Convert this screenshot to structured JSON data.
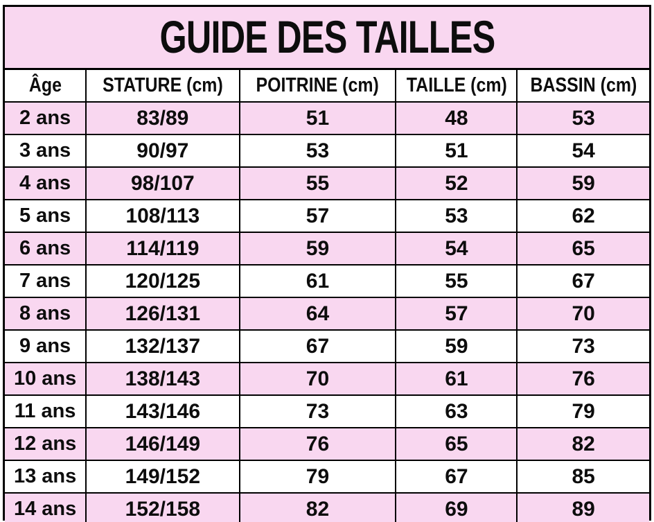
{
  "title": "GUIDE DES TAILLES",
  "table": {
    "columns": [
      "Âge",
      "STATURE (cm)",
      "POITRINE (cm)",
      "TAILLE (cm)",
      "BASSIN (cm)"
    ],
    "rows": [
      [
        "2 ans",
        "83/89",
        "51",
        "48",
        "53"
      ],
      [
        "3 ans",
        "90/97",
        "53",
        "51",
        "54"
      ],
      [
        "4 ans",
        "98/107",
        "55",
        "52",
        "59"
      ],
      [
        "5 ans",
        "108/113",
        "57",
        "53",
        "62"
      ],
      [
        "6 ans",
        "114/119",
        "59",
        "54",
        "65"
      ],
      [
        "7 ans",
        "120/125",
        "61",
        "55",
        "67"
      ],
      [
        "8 ans",
        "126/131",
        "64",
        "57",
        "70"
      ],
      [
        "9 ans",
        "132/137",
        "67",
        "59",
        "73"
      ],
      [
        "10 ans",
        "138/143",
        "70",
        "61",
        "76"
      ],
      [
        "11 ans",
        "143/146",
        "73",
        "63",
        "79"
      ],
      [
        "12 ans",
        "146/149",
        "76",
        "65",
        "82"
      ],
      [
        "13 ans",
        "149/152",
        "79",
        "67",
        "85"
      ],
      [
        "14 ans",
        "152/158",
        "82",
        "69",
        "89"
      ]
    ]
  },
  "chart_data": {
    "type": "table",
    "title": "GUIDE DES TAILLES",
    "columns": [
      "Âge",
      "STATURE (cm)",
      "POITRINE (cm)",
      "TAILLE (cm)",
      "BASSIN (cm)"
    ],
    "rows": [
      [
        "2 ans",
        "83/89",
        51,
        48,
        53
      ],
      [
        "3 ans",
        "90/97",
        53,
        51,
        54
      ],
      [
        "4 ans",
        "98/107",
        55,
        52,
        59
      ],
      [
        "5 ans",
        "108/113",
        57,
        53,
        62
      ],
      [
        "6 ans",
        "114/119",
        59,
        54,
        65
      ],
      [
        "7 ans",
        "120/125",
        61,
        55,
        67
      ],
      [
        "8 ans",
        "126/131",
        64,
        57,
        70
      ],
      [
        "9 ans",
        "132/137",
        67,
        59,
        73
      ],
      [
        "10 ans",
        "138/143",
        70,
        61,
        76
      ],
      [
        "11 ans",
        "143/146",
        73,
        63,
        79
      ],
      [
        "12 ans",
        "146/149",
        76,
        65,
        82
      ],
      [
        "13 ans",
        "149/152",
        79,
        67,
        85
      ],
      [
        "14 ans",
        "152/158",
        82,
        69,
        89
      ]
    ],
    "layout_hints": {
      "row_striping": "even ages pink, odd ages white",
      "header_background": "#ffffff",
      "title_background": "#f9d7f0"
    }
  },
  "colors": {
    "row_pink": "#f9d7f0",
    "row_white": "#ffffff",
    "border": "#000000",
    "text": "#0d0d0d"
  }
}
